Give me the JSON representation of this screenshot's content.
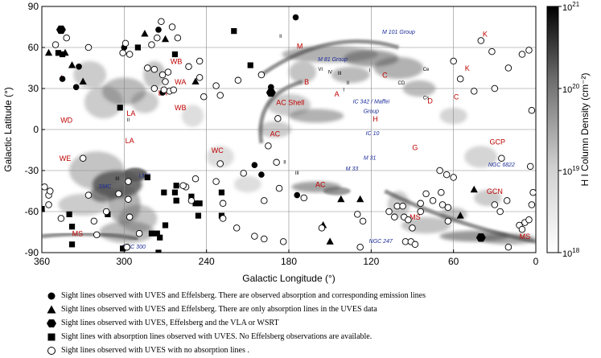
{
  "chart_data": {
    "type": "scatter",
    "title": "",
    "xlabel": "Galactic Longitude (°)",
    "ylabel": "Galactic Latitude (°)",
    "xlim": [
      360,
      0
    ],
    "ylim": [
      -90,
      90
    ],
    "x_ticks": [
      360,
      300,
      240,
      180,
      120,
      60,
      0
    ],
    "y_ticks": [
      90,
      60,
      30,
      0,
      -30,
      -60,
      -90
    ],
    "x_tick_labels": [
      "360",
      "300",
      "240",
      "180",
      "120",
      "60",
      "0"
    ],
    "y_tick_labels": [
      "90",
      "60",
      "30",
      "0",
      "-30",
      "-60",
      "-90"
    ],
    "grid": true,
    "background": "grayscale H I column density map",
    "colorbar": {
      "label": "H I Column Density (cm⁻²)",
      "ticks": [
        {
          "base": "10",
          "exp": "21",
          "value": 21
        },
        {
          "base": "10",
          "exp": "20",
          "value": 20
        },
        {
          "base": "10",
          "exp": "19",
          "value": 19
        },
        {
          "base": "10",
          "exp": "18",
          "value": 18
        }
      ],
      "range_log": [
        18,
        21
      ],
      "color_low": "#ffffff",
      "color_high": "#000000"
    },
    "region_labels": [
      {
        "text": "MS",
        "l": 334,
        "b": -78
      },
      {
        "text": "MS",
        "l": 88,
        "b": -66
      },
      {
        "text": "MS",
        "l": 8,
        "b": -80
      },
      {
        "text": "L",
        "l": 345,
        "b": 36
      },
      {
        "text": "LA",
        "l": 295,
        "b": 10
      },
      {
        "text": "LA",
        "l": 272,
        "b": 25
      },
      {
        "text": "LA",
        "l": 296,
        "b": -10
      },
      {
        "text": "WD",
        "l": 342,
        "b": 5
      },
      {
        "text": "WE",
        "l": 343,
        "b": -23
      },
      {
        "text": "WB",
        "l": 262,
        "b": 48
      },
      {
        "text": "WA",
        "l": 259,
        "b": 33
      },
      {
        "text": "WB",
        "l": 259,
        "b": 14
      },
      {
        "text": "WC",
        "l": 232,
        "b": -17
      },
      {
        "text": "AC",
        "l": 190,
        "b": -5
      },
      {
        "text": "AC",
        "l": 157,
        "b": -42
      },
      {
        "text": "AC Shell",
        "l": 179,
        "b": 18
      },
      {
        "text": "M",
        "l": 172,
        "b": 59
      },
      {
        "text": "B",
        "l": 167,
        "b": 33
      },
      {
        "text": "A",
        "l": 145,
        "b": 24
      },
      {
        "text": "C",
        "l": 110,
        "b": 38
      },
      {
        "text": "C",
        "l": 58,
        "b": 22
      },
      {
        "text": "D",
        "l": 77,
        "b": 19
      },
      {
        "text": "H",
        "l": 117,
        "b": 6
      },
      {
        "text": "G",
        "l": 88,
        "b": -15
      },
      {
        "text": "K",
        "l": 37,
        "b": 68
      },
      {
        "text": "K",
        "l": 50,
        "b": 43
      },
      {
        "text": "GCP",
        "l": 28,
        "b": -11
      },
      {
        "text": "GCN",
        "l": 30,
        "b": -47
      }
    ],
    "roman_labels": [
      {
        "text": "II",
        "l": 186,
        "b": 67
      },
      {
        "text": "VI",
        "l": 157,
        "b": 43
      },
      {
        "text": "IV",
        "l": 150,
        "b": 41
      },
      {
        "text": "III",
        "l": 143,
        "b": 40
      },
      {
        "text": "II",
        "l": 137,
        "b": 33
      },
      {
        "text": "I",
        "l": 140,
        "b": 28
      },
      {
        "text": "I",
        "l": 121,
        "b": 42
      },
      {
        "text": "CD",
        "l": 98,
        "b": 33
      },
      {
        "text": "Ce",
        "l": 80,
        "b": 43
      },
      {
        "text": "Cs",
        "l": 80,
        "b": 22
      },
      {
        "text": "II",
        "l": 183,
        "b": -25
      },
      {
        "text": "III",
        "l": 174,
        "b": -33
      },
      {
        "text": "II",
        "l": 297,
        "b": 6
      },
      {
        "text": "III",
        "l": 305,
        "b": -37
      }
    ],
    "galaxy_labels": [
      {
        "text": "M 101 Group",
        "l": 100,
        "b": 70
      },
      {
        "text": "M 81 Group",
        "l": 148,
        "b": 50
      },
      {
        "text": "IC 342 / Maffei",
        "l": 120,
        "b": 19
      },
      {
        "text": "Group",
        "l": 120,
        "b": 12
      },
      {
        "text": "IC 10",
        "l": 119,
        "b": -4
      },
      {
        "text": "M 31",
        "l": 121,
        "b": -22
      },
      {
        "text": "M 33",
        "l": 134,
        "b": -30
      },
      {
        "text": "NGC 6822",
        "l": 25,
        "b": -27
      },
      {
        "text": "SMC",
        "l": 314,
        "b": -43
      },
      {
        "text": "LMC",
        "l": 285,
        "b": -35
      },
      {
        "text": "NGC 247",
        "l": 113,
        "b": -83
      },
      {
        "text": "NGC 300",
        "l": 293,
        "b": -87
      }
    ],
    "series": [
      {
        "name": "Sight lines observed with UVES  and Effelsberg. There are observed absorption and corresponding emission lines",
        "marker": "filled-circle",
        "points": [
          [
            175,
            82
          ],
          [
            275,
            73
          ],
          [
            333,
            46
          ],
          [
            345,
            37
          ],
          [
            300,
            60
          ],
          [
            272,
            27
          ],
          [
            193,
            31
          ],
          [
            205,
            -26
          ],
          [
            200,
            -33
          ],
          [
            174,
            -48
          ],
          [
            335,
            31
          ]
        ]
      },
      {
        "name": "Sight lines observed with UVES  and Effelsberg. There are only absorption lines in the UVES data",
        "marker": "filled-triangle",
        "points": [
          [
            285,
            70
          ],
          [
            270,
            66
          ],
          [
            343,
            56
          ],
          [
            338,
            47
          ],
          [
            355,
            56
          ],
          [
            330,
            35
          ],
          [
            248,
            35
          ],
          [
            142,
            -51
          ],
          [
            155,
            -70
          ],
          [
            150,
            -82
          ],
          [
            128,
            -51
          ],
          [
            45,
            -44
          ],
          [
            55,
            -63
          ]
        ]
      },
      {
        "name": "Sight lines observed with UVES, Effelsberg and the VLA or WSRT",
        "marker": "filled-hexagon",
        "points": [
          [
            346,
            73
          ],
          [
            193,
            27
          ],
          [
            40,
            -79
          ]
        ]
      },
      {
        "name": "Sight lines with absorption lines observed with UVES. No Effelsberg observations are available.",
        "marker": "filled-square",
        "points": [
          [
            348,
            56
          ],
          [
            345,
            55
          ],
          [
            290,
            60
          ],
          [
            303,
            16
          ],
          [
            263,
            55
          ],
          [
            220,
            72
          ],
          [
            208,
            47
          ],
          [
            229,
            -46
          ],
          [
            245,
            -54
          ],
          [
            229,
            -63
          ],
          [
            246,
            -63
          ],
          [
            251,
            -49
          ],
          [
            271,
            -46
          ],
          [
            262,
            -41
          ],
          [
            270,
            -70
          ],
          [
            274,
            -79
          ],
          [
            280,
            -76
          ],
          [
            275,
            -90
          ],
          [
            301,
            -87
          ],
          [
            312,
            -62
          ],
          [
            340,
            -62
          ],
          [
            360,
            -58
          ],
          [
            338,
            -71
          ],
          [
            262,
            -52
          ],
          [
            248,
            -54
          ],
          [
            263,
            -46
          ],
          [
            276,
            -76
          ],
          [
            283,
            -35
          ],
          [
            262,
            -52
          ],
          [
            338,
            -84
          ]
        ]
      },
      {
        "name": "Sight lines observed with UVES with no absorption lines .",
        "marker": "open-circle",
        "points": [
          [
            350,
            62
          ],
          [
            342,
            67
          ],
          [
            326,
            60
          ],
          [
            299,
            63
          ],
          [
            301,
            56
          ],
          [
            296,
            55
          ],
          [
            280,
            62
          ],
          [
            265,
            75
          ],
          [
            261,
            67
          ],
          [
            273,
            79
          ],
          [
            276,
            67
          ],
          [
            283,
            45
          ],
          [
            278,
            44
          ],
          [
            272,
            40
          ],
          [
            270,
            35
          ],
          [
            267,
            28
          ],
          [
            271,
            29
          ],
          [
            264,
            29
          ],
          [
            268,
            42
          ],
          [
            278,
            30
          ],
          [
            245,
            38
          ],
          [
            253,
            46
          ],
          [
            245,
            50
          ],
          [
            233,
            32
          ],
          [
            242,
            24
          ],
          [
            230,
            25
          ],
          [
            217,
            36
          ],
          [
            200,
            40
          ],
          [
            188,
            8
          ],
          [
            195,
            -12
          ],
          [
            213,
            -32
          ],
          [
            230,
            -25
          ],
          [
            189,
            -24
          ],
          [
            187,
            -43
          ],
          [
            198,
            -52
          ],
          [
            218,
            -72
          ],
          [
            205,
            -78
          ],
          [
            228,
            -54
          ],
          [
            233,
            -38
          ],
          [
            248,
            -36
          ],
          [
            255,
            -42
          ],
          [
            251,
            -52
          ],
          [
            257,
            -41
          ],
          [
            297,
            -51
          ],
          [
            296,
            -64
          ],
          [
            330,
            -21
          ],
          [
            358,
            -42
          ],
          [
            355,
            -55
          ],
          [
            326,
            -48
          ],
          [
            322,
            -67
          ],
          [
            289,
            -76
          ],
          [
            298,
            -86
          ],
          [
            320,
            -77
          ],
          [
            346,
            -65
          ],
          [
            355,
            -48
          ],
          [
            354,
            -45
          ],
          [
            313,
            -60
          ],
          [
            304,
            -47
          ],
          [
            297,
            -38
          ],
          [
            298,
            -86
          ],
          [
            228,
            -65
          ],
          [
            184,
            -82
          ],
          [
            198,
            -80
          ],
          [
            169,
            -50
          ],
          [
            156,
            -72
          ],
          [
            130,
            -62
          ],
          [
            126,
            -67
          ],
          [
            128,
            -86
          ],
          [
            107,
            -60
          ],
          [
            103,
            -64
          ],
          [
            101,
            -56
          ],
          [
            97,
            -56
          ],
          [
            96,
            -64
          ],
          [
            95,
            -82
          ],
          [
            91,
            -82
          ],
          [
            88,
            -84
          ],
          [
            90,
            -72
          ],
          [
            93,
            -66
          ],
          [
            84,
            -60
          ],
          [
            84,
            -54
          ],
          [
            80,
            -47
          ],
          [
            75,
            -52
          ],
          [
            69,
            -46
          ],
          [
            68,
            -55
          ],
          [
            64,
            -57
          ],
          [
            64,
            -67
          ],
          [
            70,
            -30
          ],
          [
            65,
            -33
          ],
          [
            60,
            -35
          ],
          [
            25,
            -21
          ],
          [
            30,
            -55
          ],
          [
            26,
            -60
          ],
          [
            21,
            -52
          ],
          [
            20,
            -86
          ],
          [
            8,
            -68
          ],
          [
            12,
            -70
          ],
          [
            5,
            -66
          ],
          [
            10,
            -73
          ],
          [
            3,
            -55
          ],
          [
            2,
            -46
          ],
          [
            4,
            -27
          ],
          [
            3,
            14
          ],
          [
            40,
            65
          ],
          [
            32,
            57
          ],
          [
            60,
            50
          ],
          [
            55,
            37
          ],
          [
            45,
            28
          ],
          [
            30,
            30
          ],
          [
            20,
            45
          ],
          [
            10,
            55
          ],
          [
            5,
            58
          ]
        ]
      }
    ]
  }
}
